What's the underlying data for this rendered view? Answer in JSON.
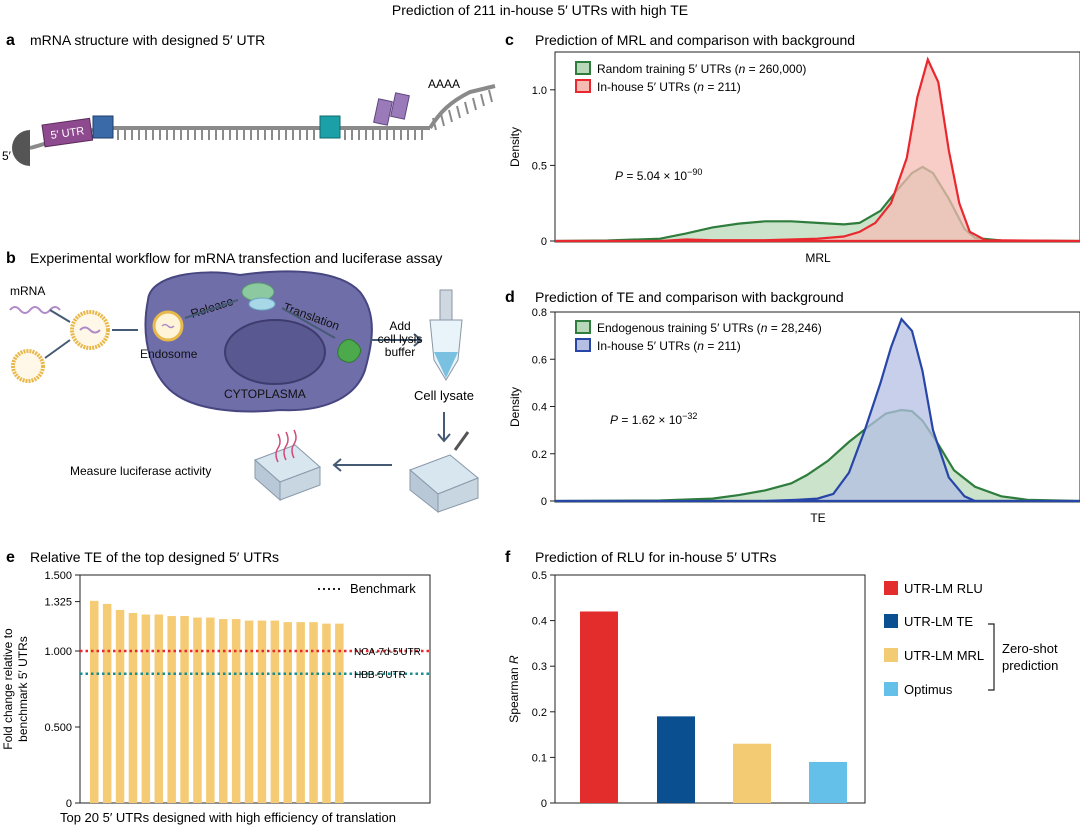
{
  "figure_title": "Prediction of 211 in-house 5′ UTRs with high TE",
  "panel_a": {
    "letter": "a",
    "title": "mRNA structure with designed 5′ UTR",
    "utr_label": "5′ UTR",
    "five_prime": "5′",
    "polya": "AAAA"
  },
  "panel_b": {
    "letter": "b",
    "title": "Experimental workflow for mRNA transfection and luciferase assay",
    "mrna": "mRNA",
    "endosome": "Endosome",
    "release": "Release",
    "translation": "Translation",
    "cytoplasma": "CYTOPLASMA",
    "add_lines": [
      "Add",
      "cell lysis",
      "buffer"
    ],
    "cell_lysate": "Cell lysate",
    "measure": "Measure luciferase activity"
  },
  "colors": {
    "green": "#2e7d3c",
    "green_fill": "#b9d8b9",
    "red": "#e8282e",
    "red_fill": "#f6bcb4",
    "blue": "#2846a8",
    "blue_fill": "#b4bfe3",
    "bar_yellow": "#f5cc75",
    "rlu_red": "#e32d2d",
    "te_blue": "#0a4f8f",
    "mrl_yellow": "#f2cb73",
    "optimus_blue": "#64c0e8"
  },
  "chart_data": [
    {
      "id": "c",
      "type": "area",
      "letter": "c",
      "title": "Prediction of MRL and comparison with background",
      "xlabel": "MRL",
      "ylabel": "Density",
      "ylim": [
        0,
        1.25
      ],
      "yticks": [
        "0",
        "0.5",
        "1.0"
      ],
      "legend_position": "top-left",
      "pvalue": {
        "prefix": "P",
        "text": " = 5.04 × 10",
        "exp": "−90"
      },
      "series": [
        {
          "name": "Random training 5′ UTRs",
          "n_label": "n",
          "n_text": " = 260,000",
          "points": [
            [
              0,
              0
            ],
            [
              10,
              0.003
            ],
            [
              20,
              0.015
            ],
            [
              25,
              0.05
            ],
            [
              30,
              0.09
            ],
            [
              35,
              0.115
            ],
            [
              40,
              0.13
            ],
            [
              45,
              0.13
            ],
            [
              50,
              0.12
            ],
            [
              55,
              0.11
            ],
            [
              58,
              0.12
            ],
            [
              62,
              0.2
            ],
            [
              65,
              0.33
            ],
            [
              68,
              0.45
            ],
            [
              70,
              0.49
            ],
            [
              72,
              0.45
            ],
            [
              75,
              0.28
            ],
            [
              78,
              0.08
            ],
            [
              80,
              0.02
            ],
            [
              85,
              0.003
            ],
            [
              100,
              0
            ]
          ]
        },
        {
          "name": "In-house 5′ UTRs",
          "n_label": "n",
          "n_text": " = 211",
          "points": [
            [
              0,
              0
            ],
            [
              20,
              0
            ],
            [
              25,
              0.01
            ],
            [
              30,
              0.005
            ],
            [
              40,
              0.005
            ],
            [
              50,
              0.015
            ],
            [
              55,
              0.03
            ],
            [
              58,
              0.06
            ],
            [
              61,
              0.12
            ],
            [
              64,
              0.25
            ],
            [
              67,
              0.55
            ],
            [
              69,
              0.95
            ],
            [
              71,
              1.2
            ],
            [
              73,
              1.05
            ],
            [
              75,
              0.6
            ],
            [
              77,
              0.25
            ],
            [
              79,
              0.06
            ],
            [
              82,
              0.005
            ],
            [
              100,
              0
            ]
          ]
        }
      ]
    },
    {
      "id": "d",
      "type": "area",
      "letter": "d",
      "title": "Prediction of TE and comparison with background",
      "xlabel": "TE",
      "ylabel": "Density",
      "ylim": [
        0,
        0.8
      ],
      "yticks": [
        "0",
        "0.2",
        "0.4",
        "0.6",
        "0.8"
      ],
      "legend_position": "top-left",
      "pvalue": {
        "prefix": "P",
        "text": " = 1.62 × 10",
        "exp": "−32"
      },
      "series": [
        {
          "name": "Endogenous training 5′ UTRs",
          "n_label": "n",
          "n_text": " = 28,246",
          "points": [
            [
              0,
              0
            ],
            [
              20,
              0.002
            ],
            [
              30,
              0.01
            ],
            [
              35,
              0.025
            ],
            [
              40,
              0.045
            ],
            [
              45,
              0.075
            ],
            [
              48,
              0.11
            ],
            [
              52,
              0.17
            ],
            [
              56,
              0.25
            ],
            [
              60,
              0.32
            ],
            [
              63,
              0.37
            ],
            [
              66,
              0.385
            ],
            [
              68,
              0.38
            ],
            [
              70,
              0.34
            ],
            [
              73,
              0.24
            ],
            [
              76,
              0.13
            ],
            [
              80,
              0.06
            ],
            [
              85,
              0.02
            ],
            [
              90,
              0.005
            ],
            [
              100,
              0
            ]
          ]
        },
        {
          "name": "In-house 5′ UTRs",
          "n_label": "n",
          "n_text": " = 211",
          "points": [
            [
              0,
              0
            ],
            [
              40,
              0
            ],
            [
              46,
              0.005
            ],
            [
              50,
              0.01
            ],
            [
              53,
              0.03
            ],
            [
              56,
              0.12
            ],
            [
              59,
              0.3
            ],
            [
              62,
              0.5
            ],
            [
              64,
              0.65
            ],
            [
              66,
              0.77
            ],
            [
              68,
              0.72
            ],
            [
              70,
              0.55
            ],
            [
              72,
              0.3
            ],
            [
              75,
              0.1
            ],
            [
              78,
              0.02
            ],
            [
              80,
              0
            ],
            [
              100,
              0
            ]
          ]
        }
      ]
    },
    {
      "id": "e",
      "type": "bar",
      "letter": "e",
      "title": "Relative TE of the top designed 5′ UTRs",
      "xlabel": "Top 20 5′ UTRs designed with high efficiency of translation",
      "ylabel": [
        "Fold change relative to",
        "benchmark 5′ UTRs"
      ],
      "ylim": [
        0,
        1.5
      ],
      "yticks": [
        {
          "v": 0,
          "label": "0"
        },
        {
          "v": 0.5,
          "label": "0.500"
        },
        {
          "v": 1.0,
          "label": "1.000"
        },
        {
          "v": 1.325,
          "label": "1.325"
        },
        {
          "v": 1.5,
          "label": "1.500"
        }
      ],
      "legend": "Benchmark",
      "benchmarks": [
        {
          "name": "NCA-7d-5′UTR",
          "value": 1.0,
          "color": "#e8282e"
        },
        {
          "name": "HBB-5′UTR",
          "value": 0.85,
          "color": "#1a8c8c"
        }
      ],
      "values": [
        1.33,
        1.31,
        1.27,
        1.25,
        1.24,
        1.24,
        1.23,
        1.23,
        1.22,
        1.22,
        1.21,
        1.21,
        1.2,
        1.2,
        1.2,
        1.19,
        1.19,
        1.19,
        1.18,
        1.18
      ]
    },
    {
      "id": "f",
      "type": "bar",
      "letter": "f",
      "title": "Prediction of RLU for in-house 5′ UTRs",
      "ylabel": "Spearman R",
      "ylim": [
        0,
        0.5
      ],
      "yticks": [
        "0",
        "0.1",
        "0.2",
        "0.3",
        "0.4",
        "0.5"
      ],
      "categories": [
        "UTR-LM RLU",
        "UTR-LM TE",
        "UTR-LM MRL",
        "Optimus"
      ],
      "values": [
        0.42,
        0.19,
        0.13,
        0.09
      ],
      "bracket_label": [
        "Zero-shot",
        "prediction"
      ]
    }
  ]
}
